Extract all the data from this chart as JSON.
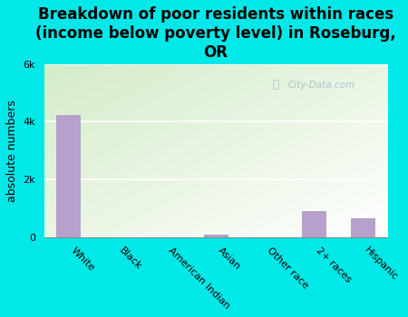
{
  "title": "Breakdown of poor residents within races\n(income below poverty level) in Roseburg,\nOR",
  "categories": [
    "White",
    "Black",
    "American Indian",
    "Asian",
    "Other race",
    "2+ races",
    "Hispanic"
  ],
  "values": [
    4250,
    0,
    0,
    80,
    0,
    900,
    650
  ],
  "bar_color": "#b8a0cc",
  "ylabel": "absolute numbers",
  "ylim": [
    0,
    6000
  ],
  "yticks": [
    0,
    2000,
    4000,
    6000
  ],
  "ytick_labels": [
    "0",
    "2k",
    "4k",
    "6k"
  ],
  "background_color": "#00e8e8",
  "watermark": "City-Data.com",
  "title_fontsize": 12,
  "ylabel_fontsize": 9,
  "xtick_fontsize": 8,
  "ytick_fontsize": 8
}
